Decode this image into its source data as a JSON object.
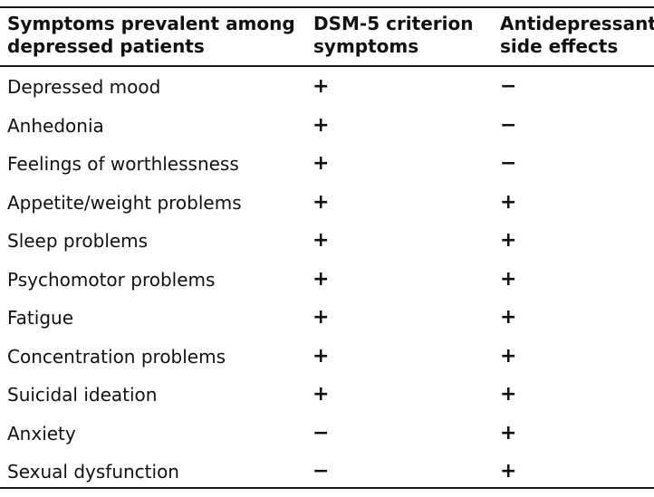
{
  "header": {
    "col1": [
      "Symptoms prevalent among",
      "depressed patients"
    ],
    "col2": [
      "DSM-5 criterion",
      "symptoms"
    ],
    "col3": [
      "Antidepressant",
      "side effects"
    ]
  },
  "rows": [
    {
      "symptom": "Depressed mood",
      "dsm5": "+",
      "side_effect": "−"
    },
    {
      "symptom": "Anhedonia",
      "dsm5": "+",
      "side_effect": "−"
    },
    {
      "symptom": "Feelings of worthlessness",
      "dsm5": "+",
      "side_effect": "−"
    },
    {
      "symptom": "Appetite/weight problems",
      "dsm5": "+",
      "side_effect": "+"
    },
    {
      "symptom": "Sleep problems",
      "dsm5": "+",
      "side_effect": "+"
    },
    {
      "symptom": "Psychomotor problems",
      "dsm5": "+",
      "side_effect": "+"
    },
    {
      "symptom": "Fatigue",
      "dsm5": "+",
      "side_effect": "+"
    },
    {
      "symptom": "Concentration problems",
      "dsm5": "+",
      "side_effect": "+"
    },
    {
      "symptom": "Suicidal ideation",
      "dsm5": "+",
      "side_effect": "+"
    },
    {
      "symptom": "Anxiety",
      "dsm5": "−",
      "side_effect": "+"
    },
    {
      "symptom": "Sexual dysfunction",
      "dsm5": "−",
      "side_effect": "+"
    }
  ]
}
